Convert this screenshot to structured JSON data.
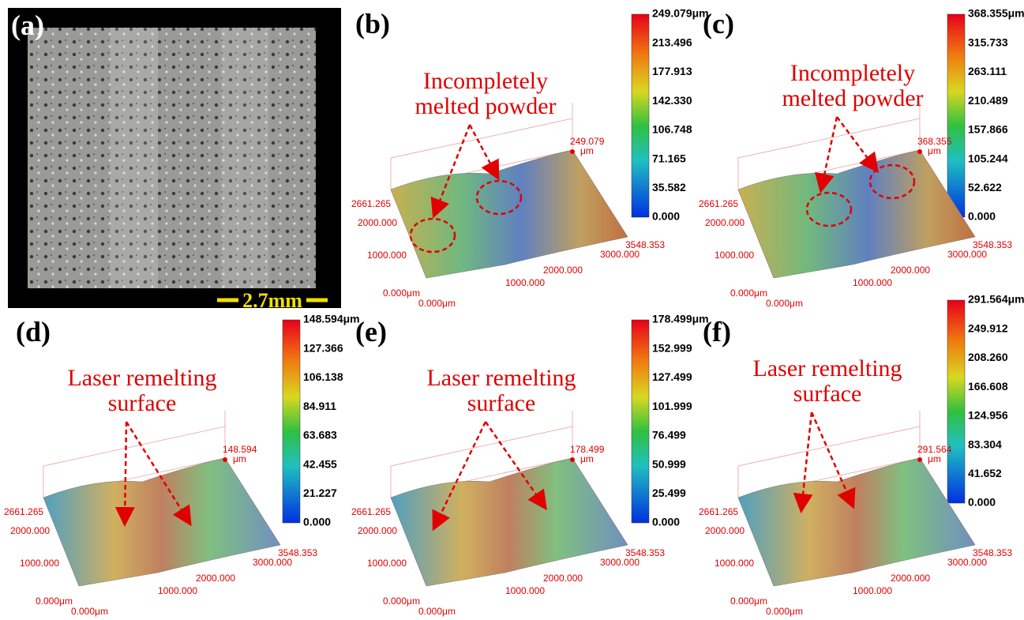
{
  "panels": [
    {
      "label": "(a)",
      "scale_bar": "2.7mm"
    },
    {
      "label": "(b)",
      "colorbar": [
        "249.079μm",
        "213.496",
        "177.913",
        "142.330",
        "106.748",
        "71.165",
        "35.582",
        "0.000"
      ],
      "annotation": [
        "Incompletely",
        "melted powder"
      ],
      "peak": [
        "249.079",
        "μm"
      ],
      "y_axis": [
        "2661.265",
        "2000.000",
        "1000.000",
        "0.000μm"
      ],
      "x_axis": [
        "0.000μm",
        "1000.000",
        "2000.000",
        "3000.000",
        "3548.353"
      ]
    },
    {
      "label": "(c)",
      "colorbar": [
        "368.355μm",
        "315.733",
        "263.111",
        "210.489",
        "157.866",
        "105.244",
        "52.622",
        "0.000"
      ],
      "annotation": [
        "Incompletely",
        "melted powder"
      ],
      "peak": [
        "368.355",
        "μm"
      ],
      "y_axis": [
        "2661.265",
        "2000.000",
        "1000.000",
        "0.000μm"
      ],
      "x_axis": [
        "0.000μm",
        "1000.000",
        "2000.000",
        "3000.000",
        "3548.353"
      ]
    },
    {
      "label": "(d)",
      "colorbar": [
        "148.594μm",
        "127.366",
        "106.138",
        "84.911",
        "63.683",
        "42.455",
        "21.227",
        "0.000"
      ],
      "annotation": [
        "Laser remelting",
        "surface"
      ],
      "peak": [
        "148.594",
        "μm"
      ],
      "y_axis": [
        "2661.265",
        "2000.000",
        "1000.000",
        "0.000μm"
      ],
      "x_axis": [
        "0.000μm",
        "1000.000",
        "2000.000",
        "3000.000",
        "3548.353"
      ]
    },
    {
      "label": "(e)",
      "colorbar": [
        "178.499μm",
        "152.999",
        "127.499",
        "101.999",
        "76.499",
        "50.999",
        "25.499",
        "0.000"
      ],
      "annotation": [
        "Laser remelting",
        "surface"
      ],
      "peak": [
        "178.499",
        "μm"
      ],
      "y_axis": [
        "2661.265",
        "2000.000",
        "1000.000",
        "0.000μm"
      ],
      "x_axis": [
        "0.000μm",
        "1000.000",
        "2000.000",
        "3000.000",
        "3548.353"
      ]
    },
    {
      "label": "(f)",
      "colorbar": [
        "291.564μm",
        "249.912",
        "208.260",
        "166.608",
        "124.956",
        "83.304",
        "41.652",
        "0.000"
      ],
      "annotation": [
        "Laser remelting",
        "surface"
      ],
      "peak": [
        "291.564",
        "μm"
      ],
      "y_axis": [
        "2661.265",
        "2000.000",
        "1000.000",
        "0.000μm"
      ],
      "x_axis": [
        "0.000μm",
        "1000.000",
        "2000.000",
        "3000.000",
        "3548.353"
      ]
    }
  ]
}
